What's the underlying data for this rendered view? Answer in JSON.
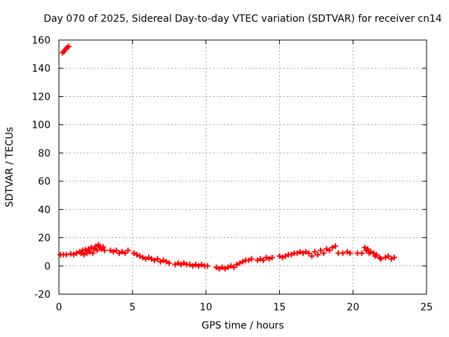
{
  "chart_data": {
    "type": "scatter",
    "title": "Day 070 of 2025, Sidereal Day-to-day VTEC variation (SDTVAR) for receiver cn14",
    "xlabel": "GPS time / hours",
    "ylabel": "SDTVAR / TECUs",
    "xlim": [
      0,
      25
    ],
    "ylim": [
      -20,
      160
    ],
    "xticks": [
      0,
      5,
      10,
      15,
      20,
      25
    ],
    "yticks": [
      -20,
      0,
      20,
      40,
      60,
      80,
      100,
      120,
      140,
      160
    ],
    "grid": true,
    "marker": "+",
    "color": "#ff0000",
    "series": [
      {
        "name": "SDTVAR",
        "points": [
          [
            0.25,
            151
          ],
          [
            0.35,
            152
          ],
          [
            0.45,
            153.5
          ],
          [
            0.55,
            154.5
          ],
          [
            0.65,
            155.5
          ],
          [
            0.1,
            8
          ],
          [
            0.3,
            8
          ],
          [
            0.5,
            8
          ],
          [
            0.8,
            8.5
          ],
          [
            1.0,
            8
          ],
          [
            1.2,
            9
          ],
          [
            1.4,
            10
          ],
          [
            1.5,
            9
          ],
          [
            1.6,
            11
          ],
          [
            1.7,
            8
          ],
          [
            1.8,
            11.5
          ],
          [
            1.9,
            9
          ],
          [
            2.0,
            12
          ],
          [
            2.1,
            10
          ],
          [
            2.2,
            13
          ],
          [
            2.3,
            9
          ],
          [
            2.4,
            12
          ],
          [
            2.5,
            14
          ],
          [
            2.6,
            11
          ],
          [
            2.7,
            15
          ],
          [
            2.8,
            13
          ],
          [
            2.9,
            12
          ],
          [
            3.0,
            13.5
          ],
          [
            3.1,
            11
          ],
          [
            3.5,
            11
          ],
          [
            3.7,
            10
          ],
          [
            3.9,
            11
          ],
          [
            4.1,
            9
          ],
          [
            4.3,
            10
          ],
          [
            4.5,
            9
          ],
          [
            4.7,
            11
          ],
          [
            5.1,
            9
          ],
          [
            5.3,
            8
          ],
          [
            5.5,
            7
          ],
          [
            5.7,
            6
          ],
          [
            5.9,
            5
          ],
          [
            6.1,
            6
          ],
          [
            6.3,
            5
          ],
          [
            6.5,
            4
          ],
          [
            6.7,
            5
          ],
          [
            6.9,
            3
          ],
          [
            7.1,
            4
          ],
          [
            7.3,
            3
          ],
          [
            7.5,
            2
          ],
          [
            7.9,
            1
          ],
          [
            8.1,
            2
          ],
          [
            8.3,
            1
          ],
          [
            8.5,
            2
          ],
          [
            8.7,
            1
          ],
          [
            8.9,
            1
          ],
          [
            9.1,
            0
          ],
          [
            9.3,
            1
          ],
          [
            9.5,
            0
          ],
          [
            9.7,
            1
          ],
          [
            9.9,
            0
          ],
          [
            10.1,
            0
          ],
          [
            10.7,
            -1
          ],
          [
            10.9,
            -2
          ],
          [
            11.1,
            -1
          ],
          [
            11.3,
            -2
          ],
          [
            11.5,
            -1
          ],
          [
            11.7,
            0
          ],
          [
            11.9,
            -1
          ],
          [
            12.1,
            1
          ],
          [
            12.3,
            2
          ],
          [
            12.5,
            3
          ],
          [
            12.7,
            4
          ],
          [
            12.9,
            4
          ],
          [
            13.1,
            5
          ],
          [
            13.5,
            4
          ],
          [
            13.7,
            5
          ],
          [
            13.9,
            4
          ],
          [
            14.1,
            6
          ],
          [
            14.3,
            5
          ],
          [
            14.5,
            6
          ],
          [
            15.0,
            7
          ],
          [
            15.2,
            6
          ],
          [
            15.4,
            7
          ],
          [
            15.6,
            8
          ],
          [
            15.8,
            8
          ],
          [
            16.0,
            9
          ],
          [
            16.2,
            9
          ],
          [
            16.4,
            10
          ],
          [
            16.6,
            9
          ],
          [
            16.8,
            10
          ],
          [
            17.0,
            9
          ],
          [
            17.2,
            7
          ],
          [
            17.4,
            10
          ],
          [
            17.6,
            8
          ],
          [
            17.8,
            11
          ],
          [
            18.0,
            9
          ],
          [
            18.2,
            12
          ],
          [
            18.4,
            11
          ],
          [
            18.6,
            13
          ],
          [
            18.8,
            14
          ],
          [
            19.0,
            9
          ],
          [
            19.3,
            9
          ],
          [
            19.6,
            10
          ],
          [
            19.8,
            9
          ],
          [
            20.3,
            9
          ],
          [
            20.6,
            9
          ],
          [
            20.8,
            13
          ],
          [
            20.9,
            11
          ],
          [
            21.0,
            12
          ],
          [
            21.1,
            9
          ],
          [
            21.2,
            10
          ],
          [
            21.4,
            9
          ],
          [
            21.5,
            7
          ],
          [
            21.6,
            8
          ],
          [
            21.8,
            6
          ],
          [
            21.9,
            5
          ],
          [
            22.2,
            6
          ],
          [
            22.4,
            7
          ],
          [
            22.6,
            5
          ],
          [
            22.8,
            6
          ]
        ]
      }
    ]
  }
}
